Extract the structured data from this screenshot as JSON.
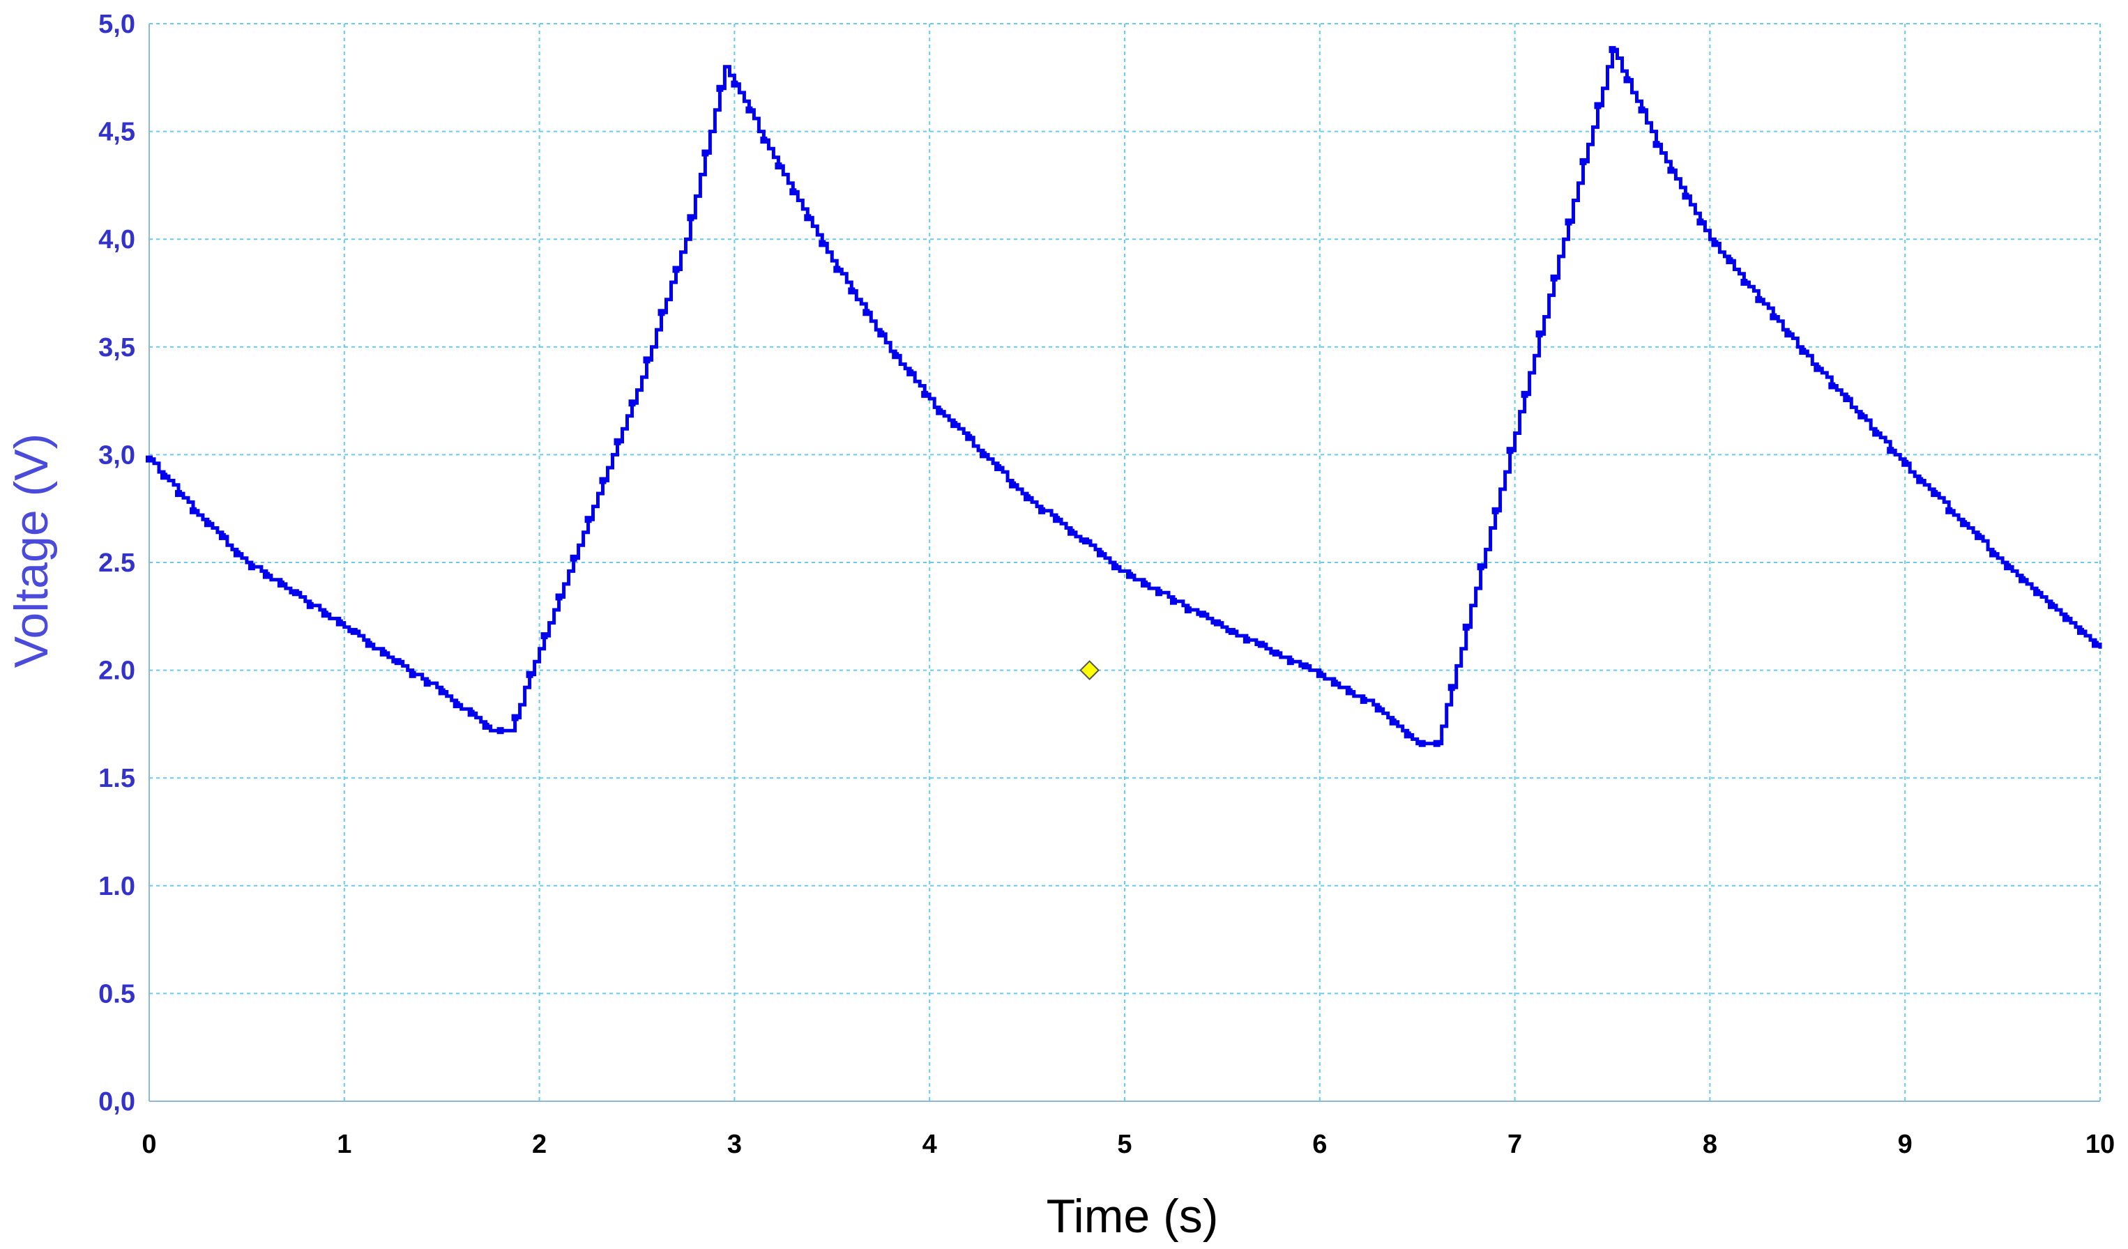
{
  "chart_data": {
    "type": "line",
    "title": "",
    "xlabel": "Time (s)",
    "ylabel": "Voltage (V)",
    "xlim": [
      0,
      10
    ],
    "ylim": [
      0,
      5
    ],
    "grid": true,
    "xticks": [
      "0",
      "1",
      "2",
      "3",
      "4",
      "5",
      "6",
      "7",
      "8",
      "9",
      "10"
    ],
    "yticks": [
      "0,0",
      "0.5",
      "1.0",
      "1.5",
      "2.0",
      "2.5",
      "3,0",
      "3,5",
      "4,0",
      "4,5",
      "5,0"
    ],
    "series": [
      {
        "color": "#0000ee",
        "x": [
          0,
          0.25,
          0.5,
          0.75,
          1.0,
          1.25,
          1.5,
          1.75,
          1.85,
          2.0,
          2.25,
          2.5,
          2.75,
          2.95,
          3.25,
          3.5,
          3.75,
          4.0,
          4.5,
          5.0,
          5.5,
          6.0,
          6.25,
          6.5,
          6.6,
          6.75,
          7.0,
          7.25,
          7.5,
          7.75,
          8.0,
          8.5,
          9.0,
          9.5,
          10.0
        ],
        "y": [
          2.98,
          2.72,
          2.5,
          2.35,
          2.2,
          2.05,
          1.9,
          1.72,
          1.72,
          2.1,
          2.7,
          3.3,
          4.0,
          4.8,
          4.3,
          3.9,
          3.55,
          3.25,
          2.8,
          2.45,
          2.2,
          1.98,
          1.85,
          1.65,
          1.65,
          2.2,
          3.1,
          4.0,
          4.88,
          4.4,
          4.0,
          3.45,
          2.95,
          2.5,
          2.1
        ]
      }
    ],
    "marker": {
      "x": 4.82,
      "y": 2.0,
      "shape": "diamond",
      "color": "#ffff00"
    },
    "colors": {
      "axis_label": "#4a4adb",
      "ytick": "#3333cc",
      "grid": "#66ccee",
      "line": "#0000ee"
    }
  }
}
